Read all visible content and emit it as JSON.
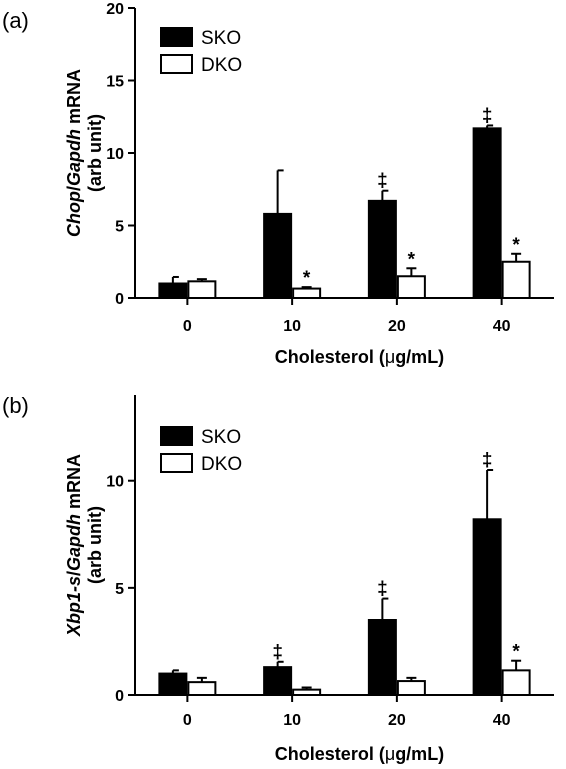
{
  "chart_data": [
    {
      "type": "bar",
      "panel_label": "(a)",
      "ylabel_gene": "Chop",
      "ylabel_ref": "Gapdh",
      "ylabel_suffix": " mRNA",
      "ylabel_line2": "(arb unit)",
      "xlabel_prefix": "Cholesterol (",
      "xlabel_mu": "μ",
      "xlabel_suffix": "g/mL)",
      "categories": [
        "0",
        "10",
        "20",
        "40"
      ],
      "ylim": [
        0,
        20
      ],
      "yticks": [
        "0",
        "5",
        "10",
        "15",
        "20"
      ],
      "legend_position": "top-left",
      "series": [
        {
          "name": "SKO",
          "fill": "#000000",
          "values": [
            1.0,
            5.8,
            6.7,
            11.7
          ],
          "errors": [
            0.45,
            3.0,
            0.7,
            0.2
          ],
          "marks": [
            "",
            "",
            "‡",
            "‡"
          ]
        },
        {
          "name": "DKO",
          "fill": "#ffffff",
          "values": [
            1.15,
            0.65,
            1.5,
            2.5
          ],
          "errors": [
            0.15,
            0.1,
            0.55,
            0.55
          ],
          "marks": [
            "",
            "*",
            "*",
            "*"
          ]
        }
      ]
    },
    {
      "type": "bar",
      "panel_label": "(b)",
      "ylabel_gene": "Xbp1-s",
      "ylabel_ref": "Gapdh",
      "ylabel_suffix": " mRNA",
      "ylabel_line2": "(arb unit)",
      "xlabel_prefix": "Cholesterol (",
      "xlabel_mu": "μ",
      "xlabel_suffix": "g/mL)",
      "categories": [
        "0",
        "10",
        "20",
        "40"
      ],
      "ylim": [
        0,
        14
      ],
      "yticks": [
        "0",
        "5",
        "10"
      ],
      "legend_position": "top-left",
      "series": [
        {
          "name": "SKO",
          "fill": "#000000",
          "values": [
            1.0,
            1.3,
            3.5,
            8.2
          ],
          "errors": [
            0.15,
            0.25,
            1.0,
            2.3
          ],
          "marks": [
            "",
            "‡",
            "‡",
            "‡"
          ]
        },
        {
          "name": "DKO",
          "fill": "#ffffff",
          "values": [
            0.6,
            0.25,
            0.65,
            1.15
          ],
          "errors": [
            0.2,
            0.1,
            0.15,
            0.45
          ],
          "marks": [
            "",
            "",
            "",
            "*"
          ]
        }
      ]
    }
  ]
}
